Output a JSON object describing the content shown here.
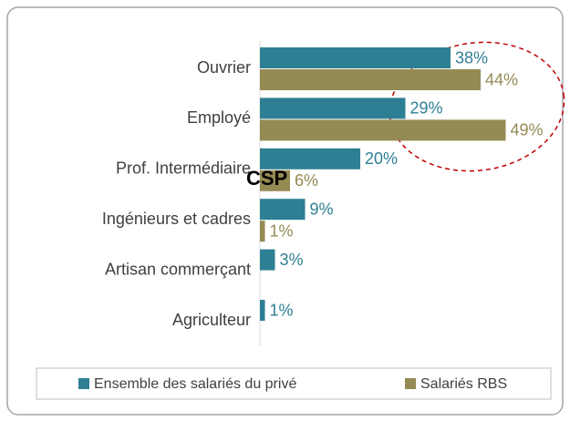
{
  "chart_data": {
    "type": "bar",
    "orientation": "horizontal",
    "categories": [
      "Ouvrier",
      "Employé",
      "Prof. Intermédiaire",
      "Ingénieurs et cadres",
      "Artisan commerçant",
      "Agriculteur"
    ],
    "series": [
      {
        "name": "Ensemble des salariés du privé",
        "color": "#2e7f93",
        "values": [
          38,
          29,
          20,
          9,
          3,
          1
        ],
        "value_labels": [
          "38%",
          "29%",
          "20%",
          "9%",
          "3%",
          "1%"
        ]
      },
      {
        "name": "Salariés RBS",
        "color": "#948a54",
        "values": [
          44,
          49,
          6,
          1,
          null,
          null
        ],
        "value_labels": [
          "44%",
          "49%",
          "6%",
          "1%",
          null,
          null
        ]
      }
    ],
    "annotation": "CSP",
    "legend": "bottom"
  }
}
